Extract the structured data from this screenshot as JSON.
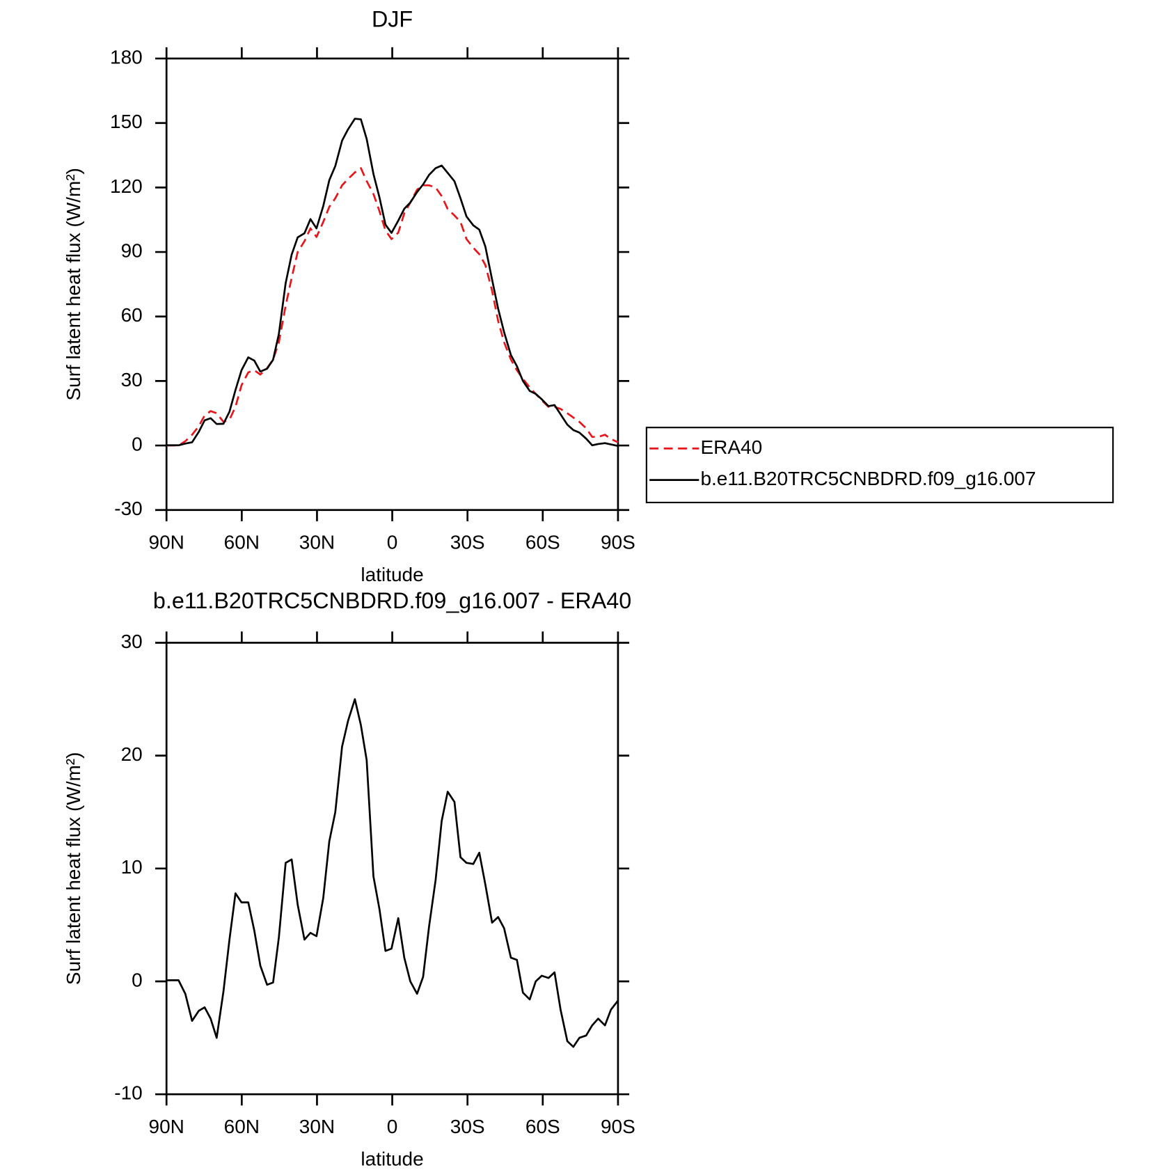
{
  "chart_data": [
    {
      "type": "line",
      "title": "DJF",
      "xlabel": "latitude",
      "ylabel": "Surf latent heat flux (W/m²)",
      "x": [
        90,
        85.2,
        82.5,
        79.8,
        77.1,
        74.8,
        72.4,
        70,
        67.3,
        64.9,
        62.5,
        60.1,
        57.4,
        55,
        52.6,
        49.9,
        47.5,
        45.2,
        42.5,
        40.1,
        37.7,
        35,
        32.6,
        30.2,
        27.5,
        25.1,
        22.7,
        20,
        17.6,
        14.9,
        12.5,
        10.2,
        7.5,
        5.1,
        2.7,
        0.3,
        -2.4,
        -4.8,
        -7.2,
        -9.9,
        -12.3,
        -14.7,
        -17.3,
        -19.7,
        -22.1,
        -24.8,
        -27.2,
        -29.6,
        -32.3,
        -34.7,
        -37.1,
        -39.8,
        -42.2,
        -44.6,
        -47.3,
        -49.7,
        -52.1,
        -54.8,
        -57.2,
        -59.6,
        -62.3,
        -64.7,
        -67.1,
        -69.8,
        -72.2,
        -74.6,
        -77.3,
        -79.7,
        -82.1,
        -84.8,
        -87.2,
        -90
      ],
      "series": [
        {
          "name": "ERA40",
          "color": "#e8161b",
          "dashed": true,
          "values": [
            0,
            0,
            2,
            5,
            9,
            14,
            16,
            15,
            11,
            12,
            18,
            28,
            34,
            35,
            33,
            36,
            40,
            48,
            65,
            78,
            90,
            95,
            101,
            97,
            104,
            111,
            115,
            121,
            124,
            127,
            129,
            123,
            117,
            109,
            100,
            96,
            99,
            108,
            113,
            119,
            121,
            121,
            120,
            116,
            110,
            107,
            104,
            96,
            92,
            89,
            84,
            72,
            58,
            48,
            40,
            35,
            31,
            27,
            24,
            21,
            18,
            18,
            17,
            15,
            13,
            11,
            8,
            4,
            4,
            5,
            3,
            1.5
          ]
        },
        {
          "name": "b.e11.B20TRC5CNBDRD.f09_g16.007",
          "color": "#000000",
          "dashed": false,
          "values": [
            0.1,
            0.1,
            0.9,
            1.5,
            6.4,
            11.7,
            12.7,
            10,
            10.1,
            15.7,
            25.8,
            35,
            41,
            39.5,
            34.4,
            35.7,
            39.9,
            51.9,
            75.5,
            88.8,
            96.8,
            98.7,
            105.3,
            101,
            111.4,
            123.4,
            130,
            141.8,
            147.1,
            152,
            151.7,
            142.6,
            126.3,
            115.4,
            102.7,
            98.9,
            104.6,
            110.1,
            113,
            117.9,
            121.4,
            125.9,
            129,
            130.2,
            126.8,
            122.9,
            115,
            106.5,
            102.4,
            100.4,
            92.6,
            77.2,
            63.7,
            52.7,
            42.1,
            36.9,
            30,
            25.4,
            24,
            21.5,
            18.3,
            18.8,
            14.5,
            9.7,
            7.2,
            6,
            3.2,
            0.1,
            0.7,
            1.1,
            0.5,
            -0.2
          ]
        }
      ],
      "xlim": [
        90,
        -90
      ],
      "xticks": [
        {
          "value": 90,
          "label": "90N"
        },
        {
          "value": 60,
          "label": "60N"
        },
        {
          "value": 30,
          "label": "30N"
        },
        0,
        {
          "value": -30,
          "label": "30S"
        },
        {
          "value": -60,
          "label": "60S"
        },
        {
          "value": -90,
          "label": "90S"
        }
      ],
      "ylim": [
        -30,
        180
      ],
      "yticks": [
        -30,
        0,
        30,
        60,
        90,
        120,
        150,
        180
      ],
      "legend": "right"
    },
    {
      "type": "line",
      "title": "b.e11.B20TRC5CNBDRD.f09_g16.007 - ERA40",
      "xlabel": "latitude",
      "ylabel": "Surf latent heat flux (W/m²)",
      "x": [
        90,
        85.2,
        82.5,
        79.8,
        77.1,
        74.8,
        72.4,
        70,
        67.3,
        64.9,
        62.5,
        60.1,
        57.4,
        55,
        52.6,
        49.9,
        47.5,
        45.2,
        42.5,
        40.1,
        37.7,
        35,
        32.6,
        30.2,
        27.5,
        25.1,
        22.7,
        20,
        17.6,
        14.9,
        12.5,
        10.2,
        7.5,
        5.1,
        2.7,
        0.3,
        -2.4,
        -4.8,
        -7.2,
        -9.9,
        -12.3,
        -14.7,
        -17.3,
        -19.7,
        -22.1,
        -24.8,
        -27.2,
        -29.6,
        -32.3,
        -34.7,
        -37.1,
        -39.8,
        -42.2,
        -44.6,
        -47.3,
        -49.7,
        -52.1,
        -54.8,
        -57.2,
        -59.6,
        -62.3,
        -64.7,
        -67.1,
        -69.8,
        -72.2,
        -74.6,
        -77.3,
        -79.7,
        -82.1,
        -84.8,
        -87.2,
        -90
      ],
      "values": [
        0.1,
        0.1,
        -1.1,
        -3.5,
        -2.6,
        -2.3,
        -3.3,
        -5.0,
        -0.9,
        3.7,
        7.8,
        7.0,
        7.0,
        4.5,
        1.4,
        -0.3,
        -0.1,
        3.9,
        10.5,
        10.8,
        6.8,
        3.7,
        4.3,
        4.0,
        7.4,
        12.4,
        15.0,
        20.8,
        23.1,
        25.0,
        22.7,
        19.6,
        9.3,
        6.4,
        2.7,
        2.9,
        5.6,
        2.1,
        0,
        -1.1,
        0.4,
        4.9,
        9.0,
        14.2,
        16.8,
        15.9,
        11.0,
        10.5,
        10.4,
        11.4,
        8.6,
        5.2,
        5.7,
        4.7,
        2.1,
        1.9,
        -1.0,
        -1.6,
        0,
        0.5,
        0.3,
        0.8,
        -2.5,
        -5.3,
        -5.8,
        -5.0,
        -4.8,
        -3.9,
        -3.3,
        -3.9,
        -2.5,
        -1.7
      ],
      "color": "#000000",
      "xlim": [
        90,
        -90
      ],
      "xticks": [
        {
          "value": 90,
          "label": "90N"
        },
        {
          "value": 60,
          "label": "60N"
        },
        {
          "value": 30,
          "label": "30N"
        },
        0,
        {
          "value": -30,
          "label": "30S"
        },
        {
          "value": -60,
          "label": "60S"
        },
        {
          "value": -90,
          "label": "90S"
        }
      ],
      "ylim": [
        -10,
        30
      ],
      "yticks": [
        -10,
        0,
        10,
        20,
        30
      ]
    }
  ]
}
